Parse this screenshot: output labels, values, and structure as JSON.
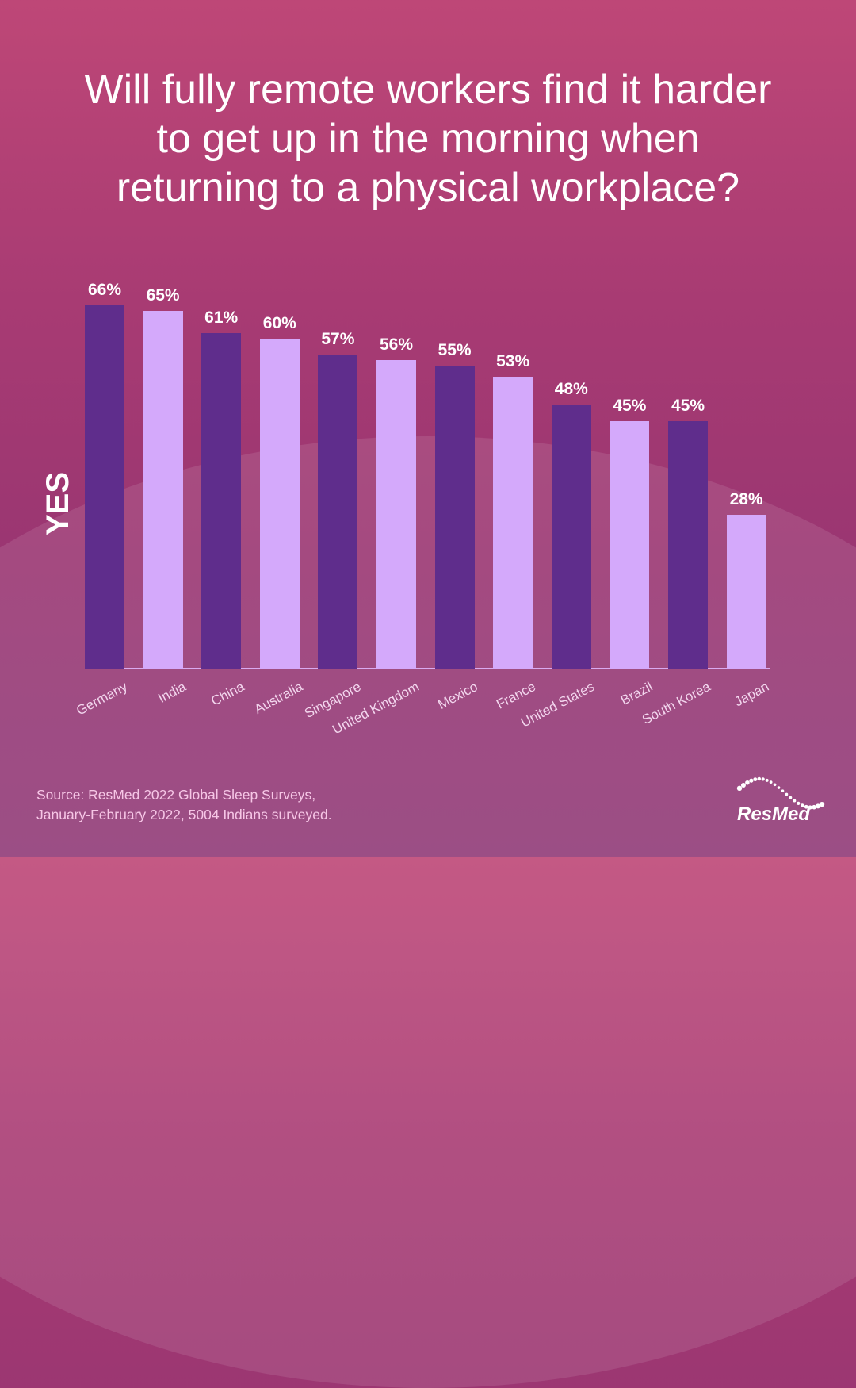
{
  "title": "Will fully remote workers find it harder to get up in the morning when returning to a physical workplace?",
  "title_lines": [
    "Will fully remote workers find it harder",
    "to get up in the morning when",
    "returning to a physical workplace?"
  ],
  "ylabel": "YES",
  "source_lines": [
    "Source: ResMed 2022 Global Sleep Surveys,",
    "January-February 2022, 5004 Indians surveyed."
  ],
  "brand": "ResMed",
  "colors": {
    "dark_bar": "#5f2d8c",
    "light_bar": "#d4a9fb",
    "background": "#a83b73"
  },
  "chart_data": {
    "type": "bar",
    "title": "Will fully remote workers find it harder to get up in the morning when returning to a physical workplace?",
    "xlabel": "",
    "ylabel": "YES",
    "categories": [
      "Germany",
      "India",
      "China",
      "Australia",
      "Singapore",
      "United Kingdom",
      "Mexico",
      "France",
      "United States",
      "Brazil",
      "South Korea",
      "Japan"
    ],
    "values": [
      66,
      65,
      61,
      60,
      57,
      56,
      55,
      53,
      48,
      45,
      45,
      28
    ],
    "value_labels": [
      "66%",
      "65%",
      "61%",
      "60%",
      "57%",
      "56%",
      "55%",
      "53%",
      "48%",
      "45%",
      "45%",
      "28%"
    ],
    "unit": "%",
    "ylim": [
      0,
      70
    ],
    "grid": false,
    "legend": null
  }
}
